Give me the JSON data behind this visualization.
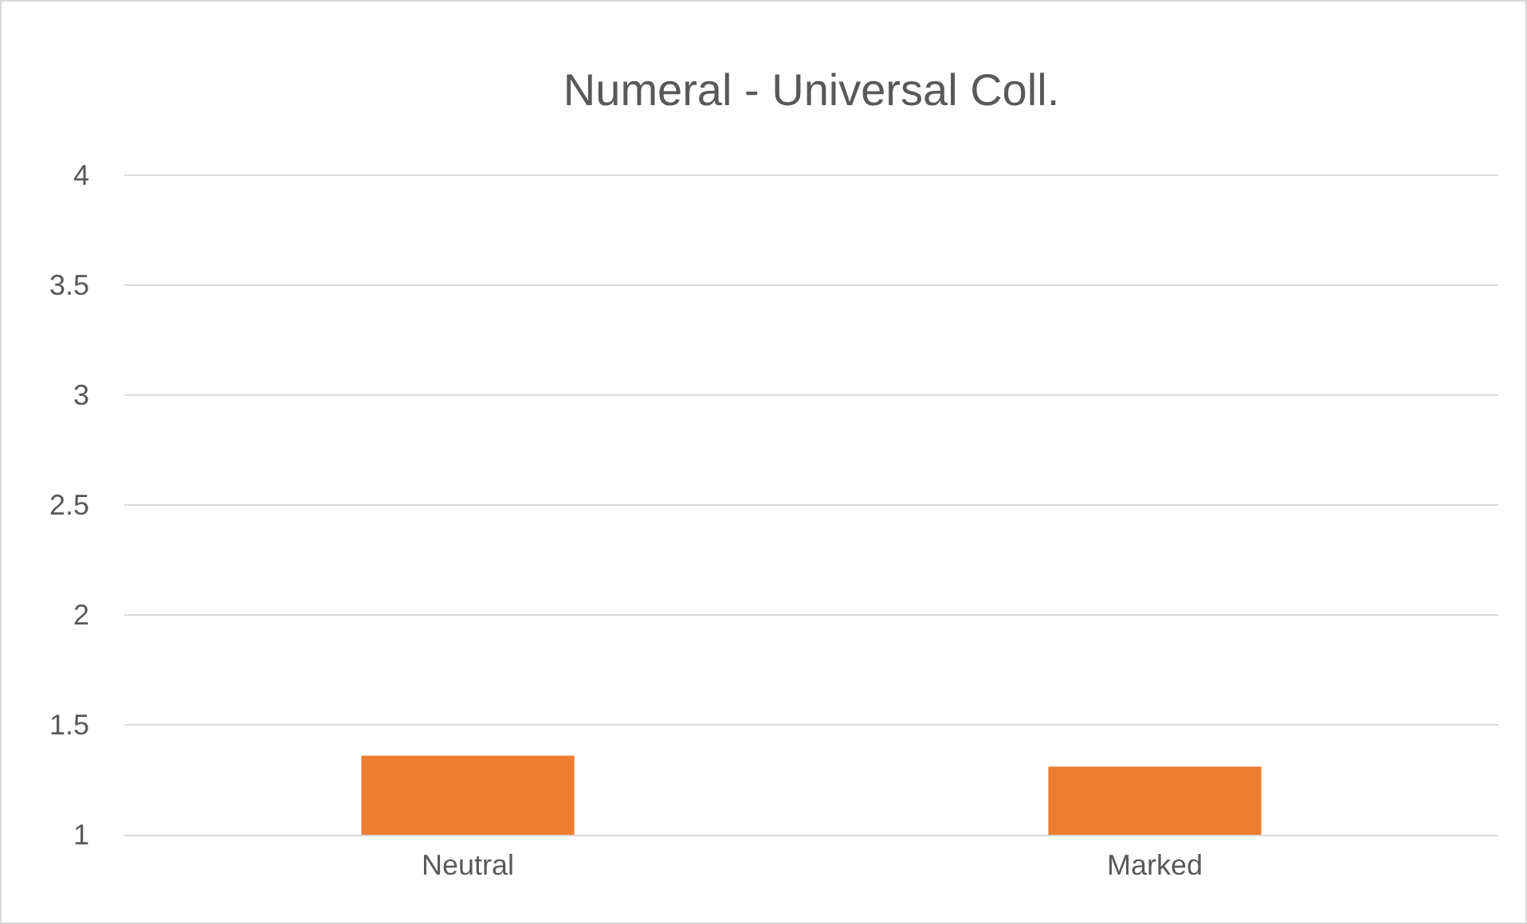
{
  "chart_data": {
    "type": "bar",
    "title": "Numeral - Universal Coll.",
    "categories": [
      "Neutral",
      "Marked"
    ],
    "values": [
      1.36,
      1.31
    ],
    "color": "#ed7d31",
    "ylim": [
      1,
      4
    ],
    "yticks": [
      1,
      1.5,
      2,
      2.5,
      3,
      3.5,
      4
    ],
    "grid": "y"
  }
}
